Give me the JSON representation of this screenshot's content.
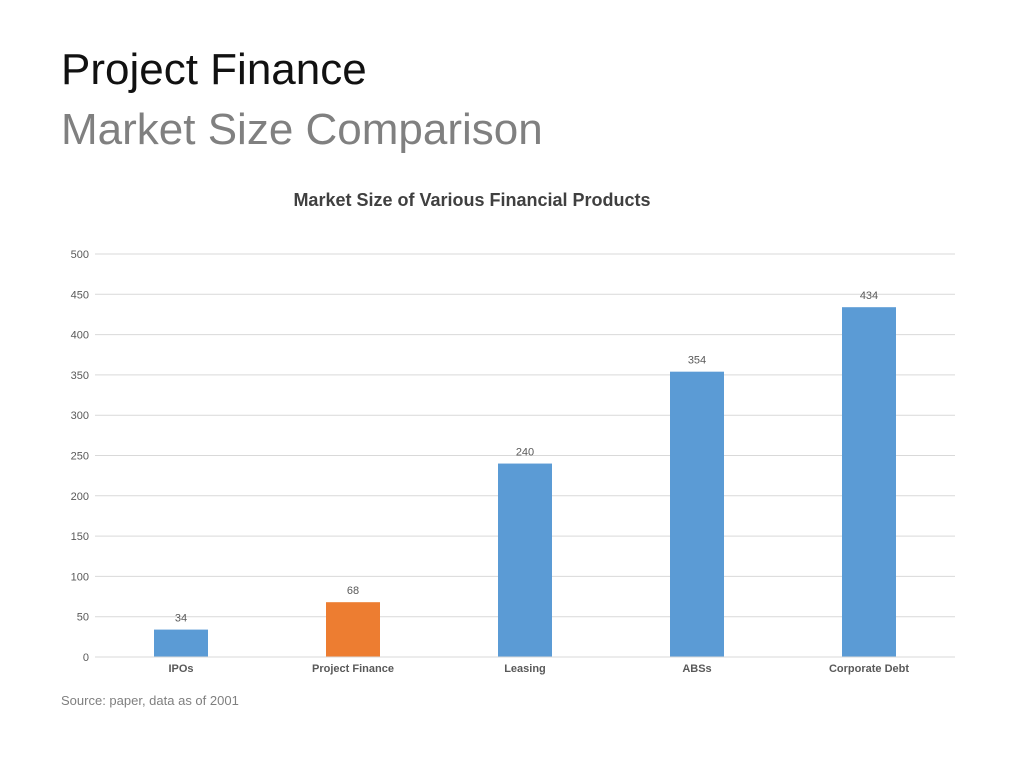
{
  "slide": {
    "title": "Project Finance",
    "subtitle": "Market Size Comparison",
    "source": "Source: paper, data as of 2001"
  },
  "colors": {
    "bar_default": "#5b9bd5",
    "bar_highlight": "#ed7d31",
    "gridline": "#d9d9d9",
    "axis_text": "#595959",
    "title_text": "#404040"
  },
  "chart_data": {
    "type": "bar",
    "title": "Market Size of Various Financial Products",
    "xlabel": "",
    "ylabel": "",
    "categories": [
      "IPOs",
      "Project Finance",
      "Leasing",
      "ABSs",
      "Corporate Debt"
    ],
    "values": [
      34,
      68,
      240,
      354,
      434
    ],
    "data_labels": [
      "34",
      "68",
      "240",
      "354",
      "434"
    ],
    "highlight_category": "Project Finance",
    "ylim": [
      0,
      500
    ],
    "yticks": [
      0,
      50,
      100,
      150,
      200,
      250,
      300,
      350,
      400,
      450,
      500
    ],
    "grid": true,
    "legend": "none"
  }
}
